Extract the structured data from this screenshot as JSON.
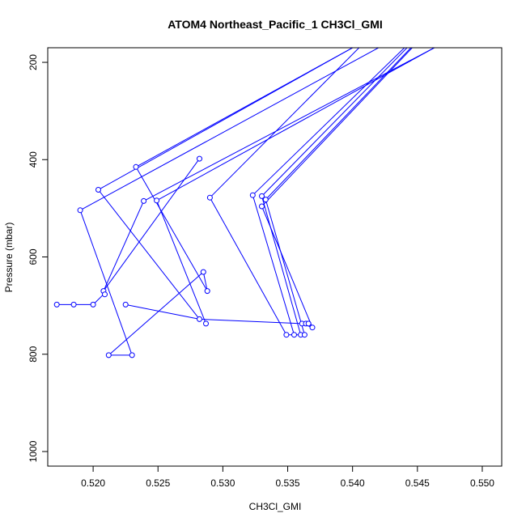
{
  "chart_data": {
    "type": "line",
    "title": "ATOM4 Northeast_Pacific_1 CH3Cl_GMI",
    "xlabel": "CH3Cl_GMI",
    "ylabel": "Pressure (mbar)",
    "xlim": [
      0.5165,
      0.5515
    ],
    "ylim": [
      1030,
      170
    ],
    "y_reversed": true,
    "grid": false,
    "legend": "none",
    "colors": {
      "series": "#0000ff",
      "axis": "#000000"
    },
    "x_ticks": [
      {
        "value": 0.52,
        "label": "0.520"
      },
      {
        "value": 0.525,
        "label": "0.525"
      },
      {
        "value": 0.53,
        "label": "0.530"
      },
      {
        "value": 0.535,
        "label": "0.535"
      },
      {
        "value": 0.54,
        "label": "0.540"
      },
      {
        "value": 0.545,
        "label": "0.545"
      },
      {
        "value": 0.55,
        "label": "0.550"
      }
    ],
    "y_ticks": [
      {
        "value": 200,
        "label": "200"
      },
      {
        "value": 400,
        "label": "400"
      },
      {
        "value": 600,
        "label": "600"
      },
      {
        "value": 800,
        "label": "800"
      },
      {
        "value": 1000,
        "label": "1000"
      }
    ],
    "points": [
      {
        "x": 0.5233,
        "y": 415
      },
      {
        "x": 0.5204,
        "y": 462
      },
      {
        "x": 0.519,
        "y": 504
      },
      {
        "x": 0.5282,
        "y": 398
      },
      {
        "x": 0.5239,
        "y": 485
      },
      {
        "x": 0.5249,
        "y": 484
      },
      {
        "x": 0.529,
        "y": 478
      },
      {
        "x": 0.5323,
        "y": 473
      },
      {
        "x": 0.533,
        "y": 475
      },
      {
        "x": 0.5333,
        "y": 482
      },
      {
        "x": 0.533,
        "y": 496
      },
      {
        "x": 0.5208,
        "y": 670
      },
      {
        "x": 0.5209,
        "y": 677
      },
      {
        "x": 0.5285,
        "y": 631
      },
      {
        "x": 0.5288,
        "y": 670
      },
      {
        "x": 0.5172,
        "y": 698
      },
      {
        "x": 0.5185,
        "y": 698
      },
      {
        "x": 0.52,
        "y": 698
      },
      {
        "x": 0.5225,
        "y": 698
      },
      {
        "x": 0.5282,
        "y": 728
      },
      {
        "x": 0.5287,
        "y": 737
      },
      {
        "x": 0.5361,
        "y": 737
      },
      {
        "x": 0.5364,
        "y": 737
      },
      {
        "x": 0.5366,
        "y": 737
      },
      {
        "x": 0.5369,
        "y": 745
      },
      {
        "x": 0.5349,
        "y": 760
      },
      {
        "x": 0.5355,
        "y": 760
      },
      {
        "x": 0.536,
        "y": 760
      },
      {
        "x": 0.5363,
        "y": 760
      },
      {
        "x": 0.5212,
        "y": 802
      },
      {
        "x": 0.523,
        "y": 802
      }
    ],
    "segments": [
      [
        [
          0.5233,
          415
        ],
        [
          0.54,
          170
        ]
      ],
      [
        [
          0.5204,
          462
        ],
        [
          0.54,
          170
        ]
      ],
      [
        [
          0.519,
          504
        ],
        [
          0.542,
          170
        ]
      ],
      [
        [
          0.5208,
          670
        ],
        [
          0.5282,
          398
        ]
      ],
      [
        [
          0.5239,
          485
        ],
        [
          0.5463,
          170
        ]
      ],
      [
        [
          0.5249,
          484
        ],
        [
          0.5463,
          170
        ]
      ],
      [
        [
          0.529,
          478
        ],
        [
          0.5405,
          170
        ]
      ],
      [
        [
          0.5323,
          473
        ],
        [
          0.544,
          170
        ]
      ],
      [
        [
          0.533,
          475
        ],
        [
          0.5442,
          170
        ]
      ],
      [
        [
          0.5333,
          482
        ],
        [
          0.5445,
          170
        ]
      ],
      [
        [
          0.533,
          496
        ],
        [
          0.5446,
          170
        ]
      ],
      [
        [
          0.5233,
          415
        ],
        [
          0.5288,
          670
        ]
      ],
      [
        [
          0.5285,
          631
        ],
        [
          0.5288,
          670
        ]
      ],
      [
        [
          0.5204,
          462
        ],
        [
          0.5282,
          728
        ]
      ],
      [
        [
          0.519,
          504
        ],
        [
          0.523,
          802
        ]
      ],
      [
        [
          0.5212,
          802
        ],
        [
          0.523,
          802
        ]
      ],
      [
        [
          0.5212,
          802
        ],
        [
          0.5285,
          631
        ]
      ],
      [
        [
          0.5208,
          670
        ],
        [
          0.5239,
          485
        ]
      ],
      [
        [
          0.5209,
          677
        ],
        [
          0.5208,
          670
        ]
      ],
      [
        [
          0.5172,
          698
        ],
        [
          0.5185,
          698
        ]
      ],
      [
        [
          0.5185,
          698
        ],
        [
          0.52,
          698
        ]
      ],
      [
        [
          0.52,
          698
        ],
        [
          0.5208,
          677
        ]
      ],
      [
        [
          0.5225,
          698
        ],
        [
          0.5282,
          728
        ]
      ],
      [
        [
          0.5249,
          484
        ],
        [
          0.5287,
          737
        ]
      ],
      [
        [
          0.5282,
          728
        ],
        [
          0.5361,
          737
        ]
      ],
      [
        [
          0.529,
          478
        ],
        [
          0.5349,
          760
        ]
      ],
      [
        [
          0.5323,
          473
        ],
        [
          0.5355,
          760
        ]
      ],
      [
        [
          0.533,
          475
        ],
        [
          0.536,
          760
        ]
      ],
      [
        [
          0.5333,
          482
        ],
        [
          0.5363,
          760
        ]
      ],
      [
        [
          0.533,
          496
        ],
        [
          0.5369,
          745
        ]
      ],
      [
        [
          0.5349,
          760
        ],
        [
          0.5363,
          760
        ]
      ],
      [
        [
          0.5361,
          737
        ],
        [
          0.5369,
          745
        ]
      ]
    ]
  }
}
